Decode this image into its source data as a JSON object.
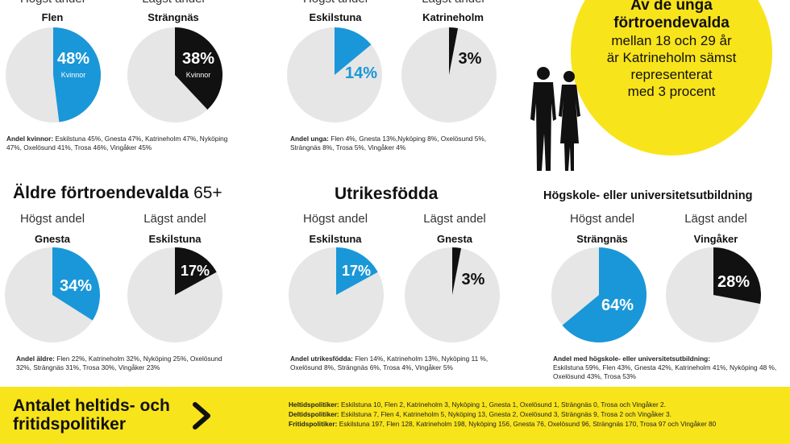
{
  "colors": {
    "blue": "#1a97d8",
    "black": "#111111",
    "grey": "#e6e6e6",
    "yellow": "#f8e41a"
  },
  "labels": {
    "high": "Högst andel",
    "low": "Lägst andel"
  },
  "sections": {
    "older_title": "Äldre förtroendevalda",
    "older_suffix": "65+",
    "foreign_title": "Utrikesfödda",
    "edu_title": "Högskole- eller universitetsutbildning"
  },
  "chart_data": [
    {
      "type": "pie",
      "name": "kvinnor",
      "high": {
        "municipality": "Flen",
        "value": 48,
        "label": "48%",
        "sub": "Kvinnor"
      },
      "low": {
        "municipality": "Strängnäs",
        "value": 38,
        "label": "38%",
        "sub": "Kvinnor"
      },
      "note_lead": "Andel kvinnor:",
      "note_text": "Eskilstuna 45%, Gnesta 47%, Katrineholm 47%, Nyköping 47%, Oxelösund 41%, Trosa 46%, Vingåker 45%"
    },
    {
      "type": "pie",
      "name": "unga",
      "high": {
        "municipality": "Eskilstuna",
        "value": 14,
        "label": "14%"
      },
      "low": {
        "municipality": "Katrineholm",
        "value": 3,
        "label": "3%"
      },
      "note_lead": "Andel unga:",
      "note_text": "Flen 4%, Gnesta 13%,Nyköping 8%, Oxelösund 5%, Strängnäs 8%, Trosa 5%, Vingåker 4%"
    },
    {
      "type": "pie",
      "name": "aldre",
      "high": {
        "municipality": "Gnesta",
        "value": 34,
        "label": "34%"
      },
      "low": {
        "municipality": "Eskilstuna",
        "value": 17,
        "label": "17%"
      },
      "note_lead": "Andel äldre:",
      "note_text": "Flen 22%, Katrineholm 32%, Nyköping 25%, Oxelösund 32%, Strängnäs 31%, Trosa 30%, Vingåker 23%"
    },
    {
      "type": "pie",
      "name": "utrikesfodda",
      "high": {
        "municipality": "Eskilstuna",
        "value": 17,
        "label": "17%"
      },
      "low": {
        "municipality": "Gnesta",
        "value": 3,
        "label": "3%"
      },
      "note_lead": "Andel utrikesfödda:",
      "note_text": "Flen 14%, Katrineholm 13%, Nyköping 11 %, Oxelösund 8%, Strängnäs 6%, Trosa 4%, Vingåker 5%"
    },
    {
      "type": "pie",
      "name": "hogskola",
      "high": {
        "municipality": "Strängnäs",
        "value": 64,
        "label": "64%"
      },
      "low": {
        "municipality": "Vingåker",
        "value": 28,
        "label": "28%"
      },
      "note_lead": "Andel med högskole- eller universitetsutbildning:",
      "note_text": "Eskilstuna 59%, Flen 43%, Gnesta 42%, Katrineholm 41%, Nyköping 48 %, Oxelösund 43%, Trosa 53%"
    }
  ],
  "bubble": {
    "title_line1": "Av de unga",
    "title_line2": "förtroendevalda",
    "line1": "mellan 18 och 29 år",
    "line2": "är Katrineholm sämst",
    "line3": "representerat",
    "line4": "med 3 procent"
  },
  "bottom": {
    "title_line1": "Antalet heltids- och",
    "title_line2": "fritidspolitiker",
    "rows": [
      {
        "lead": "Heltidspolitiker:",
        "text": "Eskilstuna 10, Flen 2, Katrineholm 3, Nyköping 1, Gnesta 1, Oxelösund 1, Strängnäs 0, Trosa och Vingåker 2."
      },
      {
        "lead": "Deltidspolitiker:",
        "text": "Eskilstuna 7, Flen 4, Katrineholm 5, Nyköping 13, Gnesta 2, Oxelösund 3, Strängnäs 9, Trosa 2 och Vingåker 3."
      },
      {
        "lead": "Fritidspolitiker:",
        "text": "Eskilstuna 197, Flen 128, Katrineholm 198, Nyköping 156, Gnesta 76, Oxelösund 96, Strängnäs 170, Trosa 97 och Vingåker 80"
      }
    ]
  }
}
